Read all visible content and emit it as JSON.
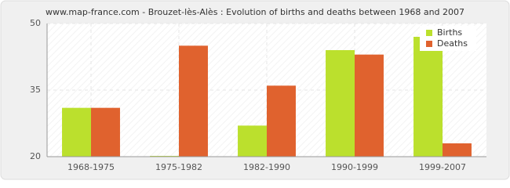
{
  "chart_data": {
    "type": "bar",
    "title": "www.map-france.com - Brouzet-lès-Alès : Evolution of births and deaths between 1968 and 2007",
    "categories": [
      "1968-1975",
      "1975-1982",
      "1982-1990",
      "1990-1999",
      "1999-2007"
    ],
    "series": [
      {
        "name": "Births",
        "color": "#bbe02d",
        "values": [
          31,
          20,
          27,
          44,
          47
        ]
      },
      {
        "name": "Deaths",
        "color": "#e0622e",
        "values": [
          31,
          45,
          36,
          43,
          23
        ]
      }
    ],
    "ylim": [
      20,
      50
    ],
    "yticks": [
      20,
      35,
      50
    ],
    "grid": true,
    "legend": "top-right"
  }
}
